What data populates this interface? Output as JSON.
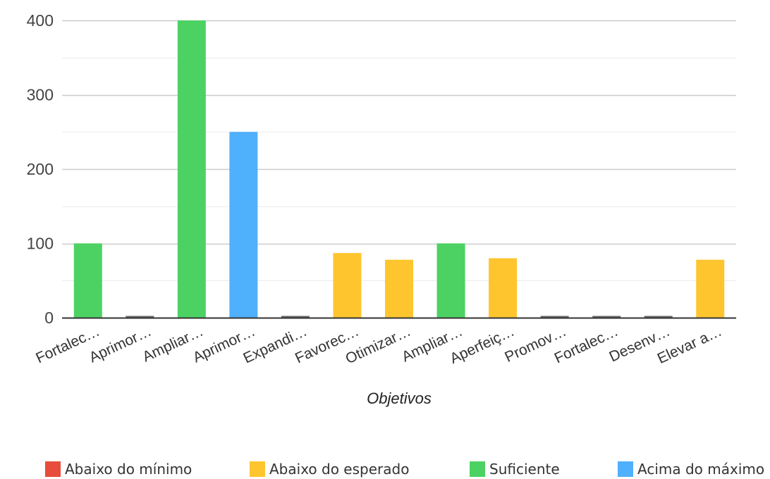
{
  "chart_data": {
    "type": "bar",
    "xlabel": "Objetivos",
    "ylabel": "",
    "ylim": [
      0,
      400
    ],
    "yticks": [
      0,
      100,
      200,
      300,
      400
    ],
    "grid": true,
    "legend_position": "bottom",
    "categories": [
      "Fortalec…",
      "Aprimor…",
      "Ampliar…",
      "Aprimor…",
      "Expandi…",
      "Favorec…",
      "Otimizar…",
      "Ampliar…",
      "Aperfeiç…",
      "Promov…",
      "Fortalec…",
      "Desenv…",
      "Elevar a…"
    ],
    "values": [
      100,
      0,
      400,
      250,
      0,
      87,
      78,
      100,
      80,
      0,
      0,
      0,
      78
    ],
    "bar_status": [
      "Suficiente",
      "Abaixo do mínimo",
      "Suficiente",
      "Acima do máximo",
      "Abaixo do mínimo",
      "Abaixo do esperado",
      "Abaixo do esperado",
      "Suficiente",
      "Abaixo do esperado",
      "Abaixo do mínimo",
      "Abaixo do mínimo",
      "Abaixo do mínimo",
      "Abaixo do esperado"
    ],
    "legend": [
      {
        "label": "Abaixo do mínimo",
        "color": "#e74c3c"
      },
      {
        "label": "Abaixo do esperado",
        "color": "#fec52e"
      },
      {
        "label": "Suficiente",
        "color": "#4cd263"
      },
      {
        "label": "Acima do máximo",
        "color": "#4fb0fc"
      }
    ],
    "zero_bar_color": "#666666"
  }
}
